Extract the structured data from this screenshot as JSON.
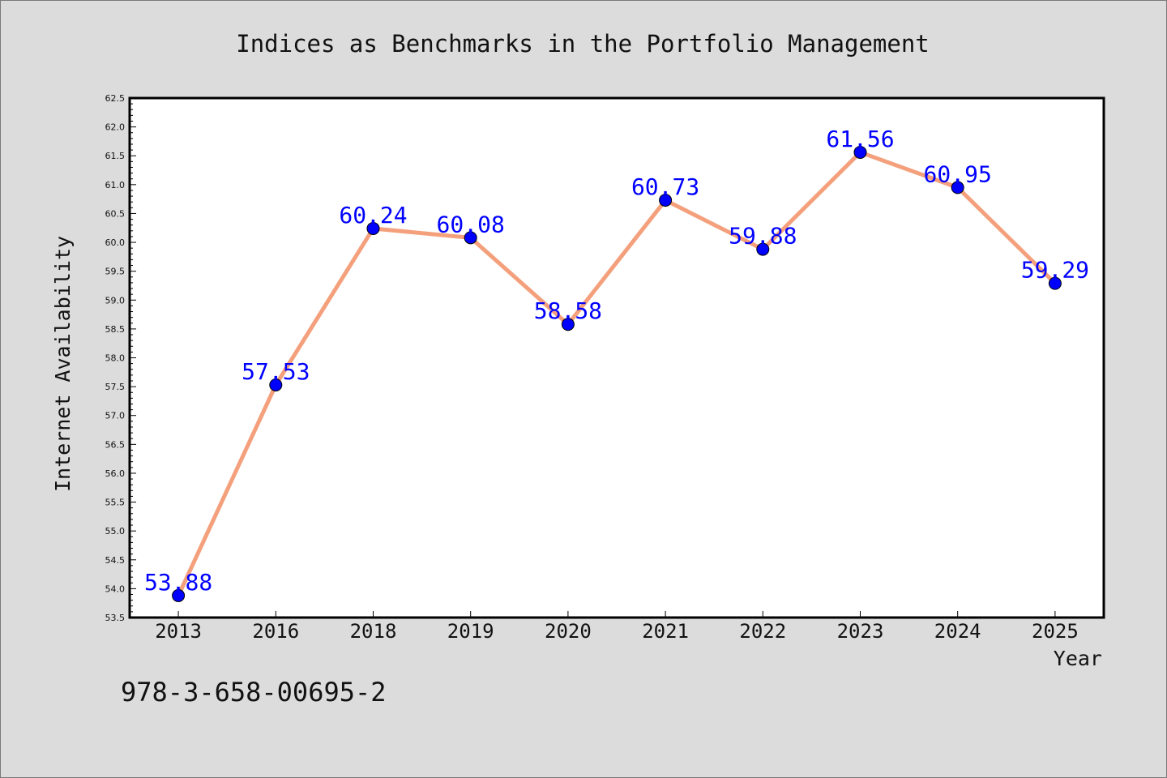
{
  "footnote": "978-3-658-00695-2",
  "colors": {
    "background": "#dcdcdc",
    "plot_background": "#ffffff",
    "line": "#f4a07c",
    "marker": "#0000ff",
    "data_label": "#0000ff"
  },
  "chart_data": {
    "type": "line",
    "title": "Indices as Benchmarks in the Portfolio Management",
    "xlabel": "Year",
    "ylabel": "Internet Availability",
    "categories": [
      "2013",
      "2016",
      "2018",
      "2019",
      "2020",
      "2021",
      "2022",
      "2023",
      "2024",
      "2025"
    ],
    "series": [
      {
        "values": [
          53.88,
          57.53,
          60.24,
          60.08,
          58.58,
          60.73,
          59.88,
          61.56,
          60.95,
          59.29
        ]
      }
    ],
    "data_labels": [
      "53.88",
      "57.53",
      "60.24",
      "60.08",
      "58.58",
      "60.73",
      "59.88",
      "61.56",
      "60.95",
      "59.29"
    ],
    "ylim": [
      53.5,
      62.5
    ],
    "yticks": [
      "53.5",
      "54.0",
      "54.5",
      "55.0",
      "55.5",
      "56.0",
      "56.5",
      "57.0",
      "57.5",
      "58.0",
      "58.5",
      "59.0",
      "59.5",
      "60.0",
      "60.5",
      "61.0",
      "61.5",
      "62.0",
      "62.5"
    ],
    "grid": false,
    "legend": "none"
  }
}
